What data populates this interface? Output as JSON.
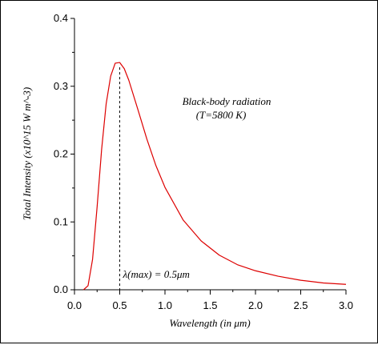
{
  "chart_data": {
    "type": "line",
    "title": "",
    "xlabel": "Wavelength (in μm)",
    "ylabel": "Total Intensity (x10^15 W m^-3)",
    "xlim": [
      0,
      3.0
    ],
    "ylim": [
      0,
      0.4
    ],
    "x_ticks": [
      "0.0",
      "0.5",
      "1.0",
      "1.5",
      "2.0",
      "2.5",
      "3.0"
    ],
    "y_ticks": [
      "0.0",
      "0.1",
      "0.2",
      "0.3",
      "0.4"
    ],
    "grid": false,
    "legend": "none",
    "series": [
      {
        "color": "#dd0000",
        "x": [
          0.1,
          0.15,
          0.2,
          0.25,
          0.3,
          0.35,
          0.4,
          0.45,
          0.5,
          0.55,
          0.6,
          0.7,
          0.8,
          0.9,
          1.0,
          1.2,
          1.4,
          1.6,
          1.8,
          2.0,
          2.25,
          2.5,
          2.75,
          3.0
        ],
        "y": [
          0.0,
          0.006,
          0.045,
          0.122,
          0.207,
          0.274,
          0.315,
          0.334,
          0.335,
          0.326,
          0.309,
          0.266,
          0.222,
          0.183,
          0.151,
          0.103,
          0.072,
          0.051,
          0.037,
          0.028,
          0.02,
          0.014,
          0.01,
          0.008
        ]
      }
    ],
    "annotations": {
      "title_line1": "Black-body radiation",
      "title_line2": "(T=5800 K)",
      "peak_label": "λ(max) = 0.5μm",
      "peak_x": 0.5,
      "peak_y": 0.335
    }
  }
}
